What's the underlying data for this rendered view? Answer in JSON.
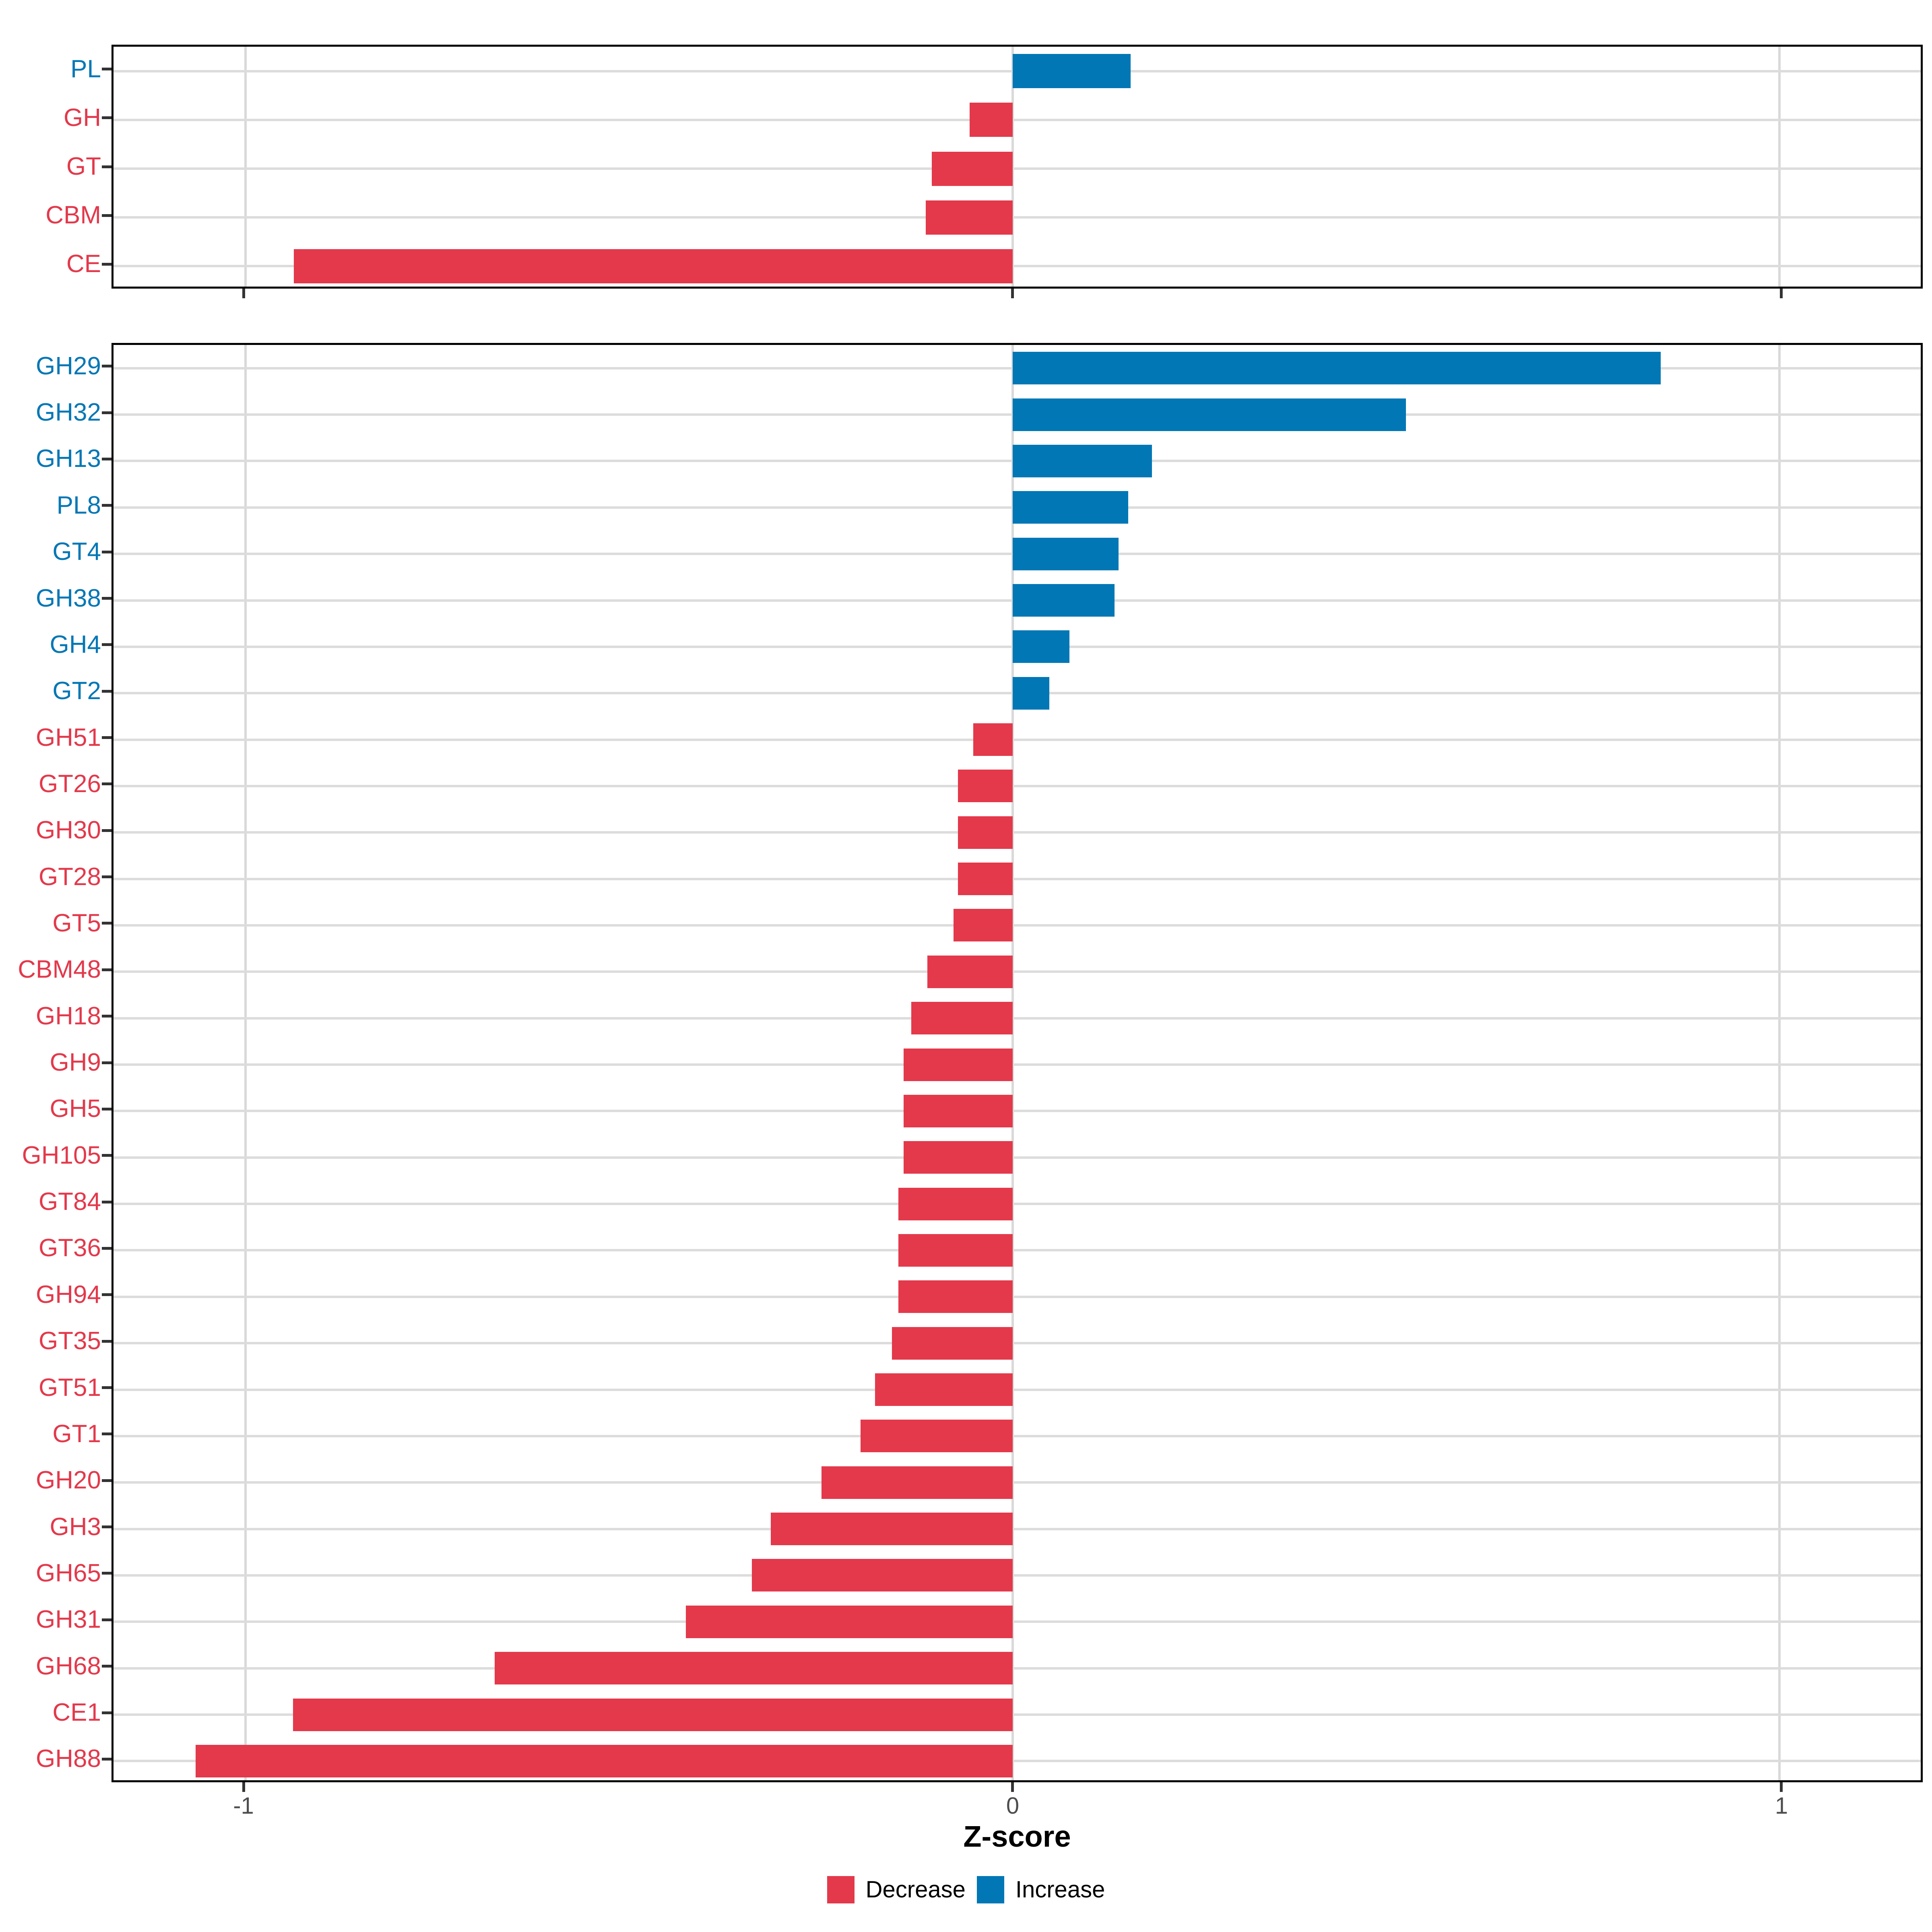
{
  "chart_data": [
    {
      "type": "bar",
      "orientation": "horizontal",
      "panel": "cazyme-classes",
      "categories": [
        "PL",
        "GH",
        "GT",
        "CBM",
        "CE"
      ],
      "values": [
        0.154,
        -0.056,
        -0.105,
        -0.113,
        -0.937
      ],
      "directions": [
        "increase",
        "decrease",
        "decrease",
        "decrease",
        "decrease"
      ],
      "xlim": [
        -1.172,
        1.184
      ],
      "x_ticks": [
        -1,
        0,
        1
      ],
      "grid": true,
      "xlabel": "",
      "ylabel": ""
    },
    {
      "type": "bar",
      "orientation": "horizontal",
      "panel": "cazyme-families",
      "categories": [
        "GH29",
        "GH32",
        "GH13",
        "PL8",
        "GT4",
        "GH38",
        "GH4",
        "GT2",
        "GH51",
        "GT26",
        "GH30",
        "GT28",
        "GT5",
        "CBM48",
        "GH18",
        "GH9",
        "GH5",
        "GH105",
        "GT84",
        "GT36",
        "GH94",
        "GT35",
        "GT51",
        "GT1",
        "GH20",
        "GH3",
        "GH65",
        "GH31",
        "GH68",
        "CE1",
        "GH88"
      ],
      "values": [
        0.845,
        0.513,
        0.182,
        0.151,
        0.138,
        0.133,
        0.074,
        0.048,
        -0.051,
        -0.071,
        -0.071,
        -0.071,
        -0.077,
        -0.111,
        -0.132,
        -0.142,
        -0.142,
        -0.142,
        -0.149,
        -0.149,
        -0.149,
        -0.157,
        -0.179,
        -0.198,
        -0.249,
        -0.315,
        -0.34,
        -0.426,
        -0.675,
        -0.938,
        -1.065
      ],
      "directions": [
        "increase",
        "increase",
        "increase",
        "increase",
        "increase",
        "increase",
        "increase",
        "increase",
        "decrease",
        "decrease",
        "decrease",
        "decrease",
        "decrease",
        "decrease",
        "decrease",
        "decrease",
        "decrease",
        "decrease",
        "decrease",
        "decrease",
        "decrease",
        "decrease",
        "decrease",
        "decrease",
        "decrease",
        "decrease",
        "decrease",
        "decrease",
        "decrease",
        "decrease",
        "decrease"
      ],
      "xlim": [
        -1.172,
        1.184
      ],
      "x_ticks": [
        -1,
        0,
        1
      ],
      "grid": true,
      "xlabel": "Z-score",
      "ylabel": ""
    }
  ],
  "axis": {
    "xlabel": "Z-score",
    "tick_labels": [
      "-1",
      "0",
      "1"
    ]
  },
  "legend": {
    "position": "bottom",
    "items": [
      {
        "label": "Decrease",
        "color": "#E3394B"
      },
      {
        "label": "Increase",
        "color": "#0277B5"
      }
    ]
  },
  "colors": {
    "decrease": "#E3394B",
    "increase": "#0277B5",
    "grid": "#D9D9D9",
    "panel_border": "#000000",
    "tick": "#333333",
    "tick_label": "#4D4D4D",
    "axis_label": "#000000",
    "background": "#FFFFFF"
  }
}
